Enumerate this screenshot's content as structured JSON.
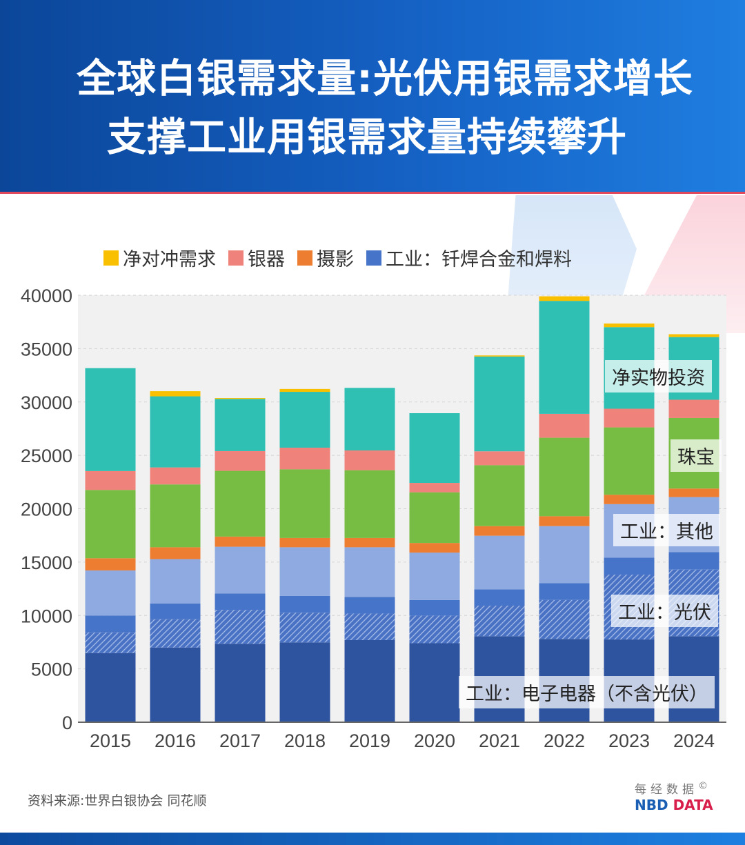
{
  "header": {
    "title_line1": "全球白银需求量:光伏用银需求增长",
    "title_line2": "支撑工业用银需求量持续攀升"
  },
  "source": "资料来源:世界白银协会 同花顺",
  "logo": {
    "cn": "每经数据",
    "en_a": "NBD",
    "en_b": "DATA",
    "copyright": "©"
  },
  "colors": {
    "header_start": "#0b4699",
    "header_end": "#1f7ee0",
    "accent_red": "#e0475a"
  },
  "chart_data": {
    "type": "bar",
    "stacked": true,
    "categories": [
      "2015",
      "2016",
      "2017",
      "2018",
      "2019",
      "2020",
      "2021",
      "2022",
      "2023",
      "2024"
    ],
    "ylim": [
      0,
      40000
    ],
    "yticks": [
      "0",
      "5000",
      "10000",
      "15000",
      "20000",
      "25000",
      "30000",
      "35000",
      "40000"
    ],
    "grid": true,
    "legend_position": "top",
    "series": [
      {
        "name": "工业：电子电器（不含光伏）",
        "color": "#2e54a0",
        "legend": false,
        "inline_label": true,
        "values": [
          6480,
          7000,
          7350,
          7480,
          7690,
          7400,
          8060,
          7800,
          7750,
          8060
        ]
      },
      {
        "name": "工业：光伏",
        "color": "#4a72c4",
        "hatched": true,
        "legend": false,
        "inline_label": true,
        "values": [
          1930,
          2650,
          3170,
          2780,
          2490,
          2590,
          2860,
          3650,
          6080,
          6240
        ]
      },
      {
        "name": "工业：钎焊合金和焊料",
        "color": "#4674c9",
        "legend": true,
        "values": [
          1580,
          1480,
          1530,
          1580,
          1560,
          1460,
          1530,
          1580,
          1580,
          1640
        ]
      },
      {
        "name": "工业：其他",
        "color": "#8faae0",
        "legend": false,
        "inline_label": true,
        "values": [
          4230,
          4150,
          4390,
          4550,
          4650,
          4440,
          5020,
          5340,
          5020,
          5150
        ]
      },
      {
        "name": "摄影",
        "color": "#ed7d31",
        "legend": true,
        "values": [
          1140,
          1110,
          950,
          870,
          870,
          900,
          900,
          930,
          880,
          800
        ]
      },
      {
        "name": "珠宝",
        "color": "#77bc43",
        "legend": false,
        "inline_label": true,
        "values": [
          6400,
          5890,
          6160,
          6430,
          6350,
          4750,
          5710,
          7350,
          6310,
          6610
        ]
      },
      {
        "name": "银器",
        "color": "#ef837b",
        "legend": true,
        "values": [
          1770,
          1590,
          1850,
          2030,
          1850,
          880,
          1300,
          2240,
          1750,
          1710
        ]
      },
      {
        "name": "净实物投资",
        "color": "#2fc0b3",
        "legend": false,
        "inline_label": true,
        "values": [
          9640,
          6660,
          4890,
          5230,
          5860,
          6530,
          8880,
          10580,
          7640,
          5870
        ]
      },
      {
        "name": "净对冲需求",
        "color": "#f8c000",
        "legend": true,
        "values": [
          0,
          480,
          80,
          270,
          0,
          0,
          100,
          430,
          340,
          270
        ]
      }
    ],
    "legend_order": [
      "净对冲需求",
      "银器",
      "摄影",
      "工业：钎焊合金和焊料"
    ]
  }
}
